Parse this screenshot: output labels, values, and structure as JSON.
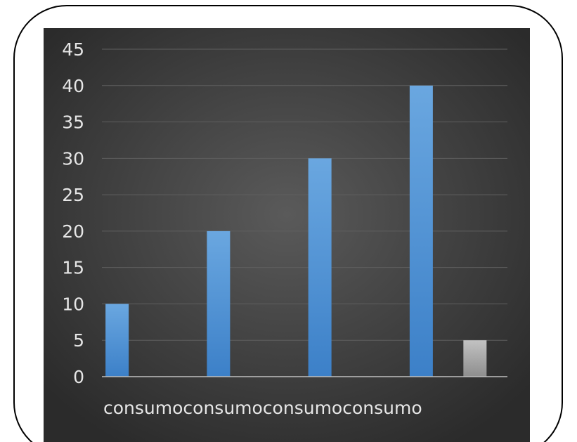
{
  "chart_data": {
    "type": "bar",
    "title": "",
    "xlabel": "",
    "ylabel": "",
    "ylim": [
      0,
      45
    ],
    "yticks": [
      0,
      5,
      10,
      15,
      20,
      25,
      30,
      35,
      40,
      45
    ],
    "grid": true,
    "legend": "none",
    "categories": [
      "consumo",
      "consumo",
      "consumo",
      "consumo"
    ],
    "series": [
      {
        "color": "#4d8fd3",
        "values": [
          10,
          20,
          30,
          40
        ]
      },
      {
        "color": "#a6a6a6",
        "values": [
          null,
          null,
          null,
          5
        ]
      }
    ]
  }
}
